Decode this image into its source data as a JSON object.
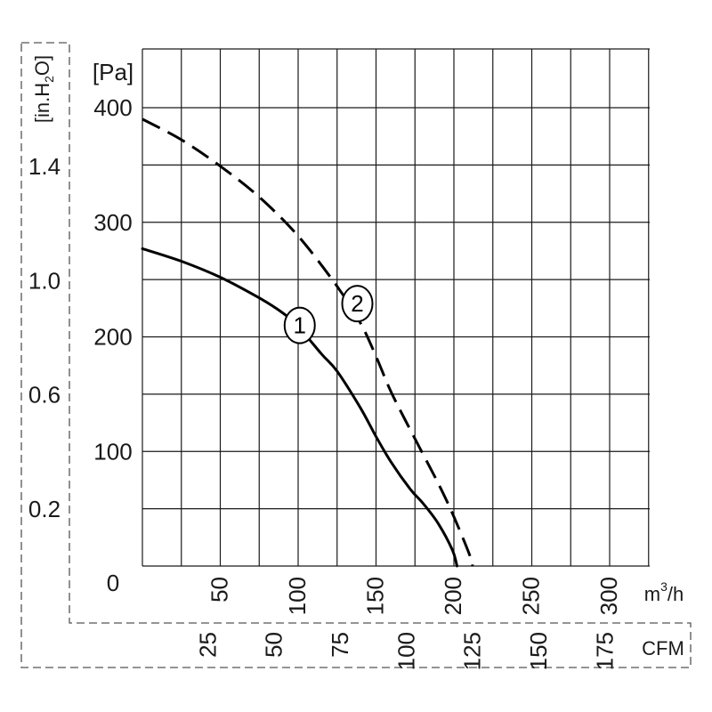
{
  "chart_data": {
    "type": "line",
    "x_axis": {
      "unit": "m³/h",
      "unit_base": "m",
      "unit_sup": "3",
      "unit_tail": "/h",
      "range": [
        0,
        325
      ],
      "ticks": [
        "50",
        "100",
        "150",
        "200",
        "250",
        "300"
      ]
    },
    "x_axis_secondary": {
      "unit": "CFM",
      "ticks": [
        "25",
        "50",
        "75",
        "100",
        "125",
        "150",
        "175"
      ]
    },
    "y_axis": {
      "unit": "[Pa]",
      "range": [
        0,
        400
      ],
      "ticks": [
        "0",
        "100",
        "200",
        "300",
        "400"
      ]
    },
    "y_axis_secondary": {
      "unit": "[in.H₂O]",
      "unit_main": "[in.H",
      "unit_sub": "2",
      "unit_tail": "O]",
      "ticks": [
        "0.2",
        "0.6",
        "1.0",
        "1.4"
      ]
    },
    "grid": true,
    "series": [
      {
        "name": "1",
        "style": "solid",
        "x": [
          0,
          25,
          50,
          75,
          90,
          100,
          115,
          125,
          140,
          150,
          160,
          172,
          180,
          190,
          199,
          202
        ],
        "y": [
          277,
          266,
          252,
          234,
          221,
          209,
          185,
          170,
          138,
          113,
          90,
          67,
          55,
          37,
          14,
          0
        ]
      },
      {
        "name": "2",
        "style": "dashed",
        "x": [
          0,
          25,
          50,
          75,
          100,
          125,
          140,
          150,
          160,
          175,
          190,
          200,
          210,
          212
        ],
        "y": [
          390,
          372,
          349,
          322,
          288,
          244,
          212,
          183,
          151,
          111,
          72,
          43,
          10,
          0
        ]
      }
    ],
    "markers": [
      {
        "label": "1",
        "x": 101,
        "y": 210
      },
      {
        "label": "2",
        "x": 138,
        "y": 229
      }
    ]
  }
}
